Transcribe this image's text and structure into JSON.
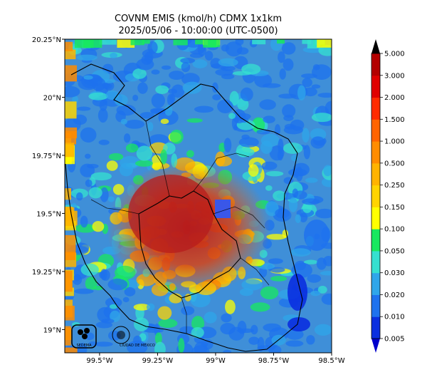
{
  "title": "COVNM EMIS (kmol/h) CDMX 1x1km",
  "subtitle": "2025/05/06 - 10:00:00 (UTC-0500)",
  "axes": {
    "lon_ticks": [
      {
        "value": -99.5,
        "label": "99.5°W"
      },
      {
        "value": -99.25,
        "label": "99.25°W"
      },
      {
        "value": -99.0,
        "label": "99°W"
      },
      {
        "value": -98.75,
        "label": "98.75°W"
      },
      {
        "value": -98.5,
        "label": "98.5°W"
      }
    ],
    "lat_ticks": [
      {
        "value": 20.25,
        "label": "20.25°N"
      },
      {
        "value": 20.0,
        "label": "20°N"
      },
      {
        "value": 19.75,
        "label": "19.75°N"
      },
      {
        "value": 19.5,
        "label": "19.5°N"
      },
      {
        "value": 19.25,
        "label": "19.25°N"
      },
      {
        "value": 19.0,
        "label": "19°N"
      }
    ],
    "lon_range": [
      -99.65,
      -98.5
    ],
    "lat_range": [
      18.9,
      20.25
    ]
  },
  "colorbar": {
    "levels": [
      "0.005",
      "0.010",
      "0.020",
      "0.030",
      "0.050",
      "0.100",
      "0.150",
      "0.250",
      "0.500",
      "1.000",
      "1.500",
      "2.000",
      "3.000",
      "5.000"
    ],
    "colors": [
      "#0a2fe0",
      "#1e72ee",
      "#2fa6ea",
      "#35e0d0",
      "#18e85f",
      "#ffff00",
      "#ffd400",
      "#ffb300",
      "#ff8c00",
      "#ff6400",
      "#ff2b00",
      "#e00000",
      "#b30000"
    ],
    "under_color": "#0000cc",
    "over_color": "#000000",
    "extend": "both"
  },
  "logos": {
    "sedema": "SEDEMA",
    "cdmx": "CIUDAD DE MÉXICO"
  },
  "colors": {
    "border": "#000000",
    "high": "#c62828",
    "medium": "#ef6c00",
    "low": "#1e88e5"
  }
}
